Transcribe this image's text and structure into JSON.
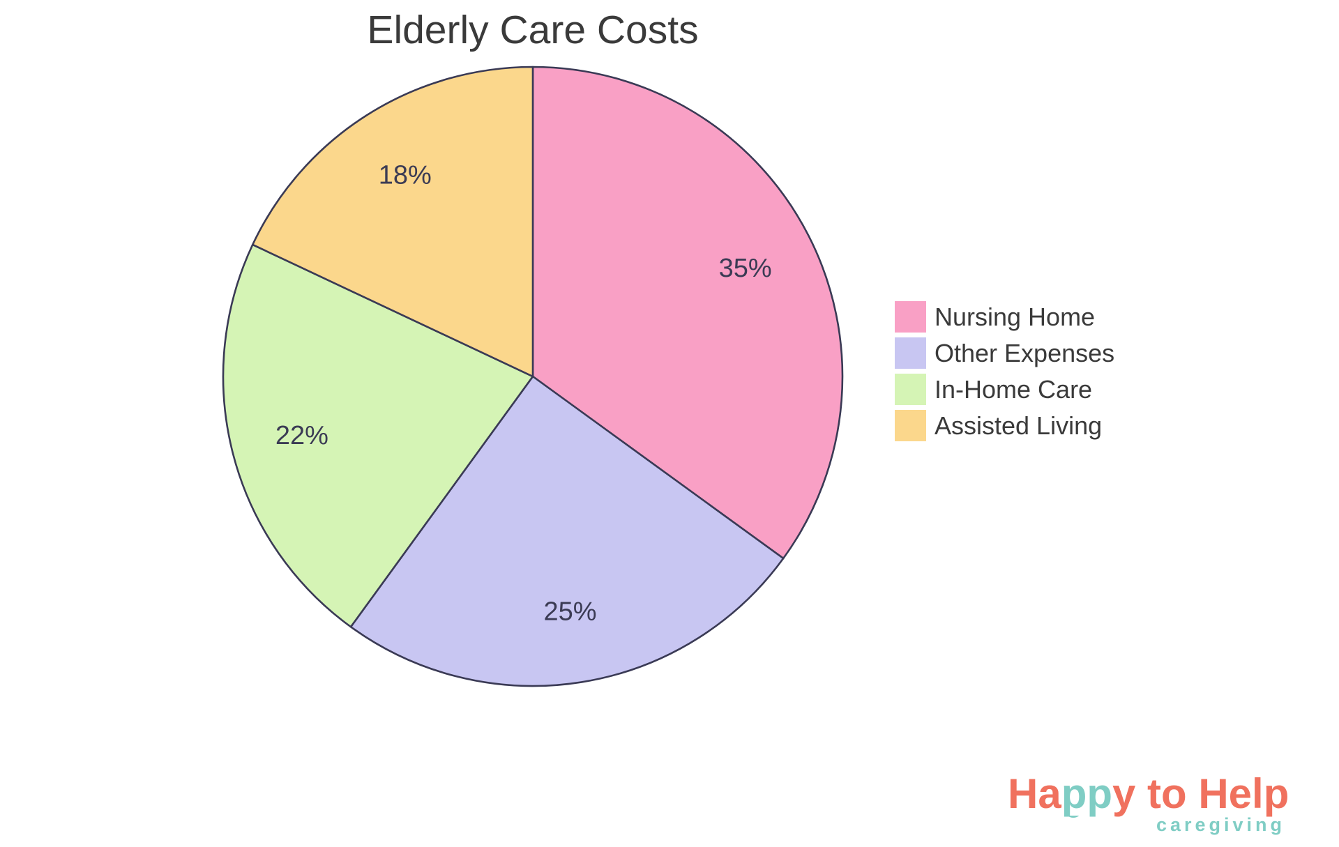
{
  "chart_data": {
    "type": "pie",
    "title": "Elderly Care Costs",
    "slices": [
      {
        "label": "Nursing Home",
        "value": 35,
        "pct_label": "35%",
        "color": "#F9A0C5"
      },
      {
        "label": "Other Expenses",
        "value": 25,
        "pct_label": "25%",
        "color": "#C8C6F2"
      },
      {
        "label": "In-Home Care",
        "value": 22,
        "pct_label": "22%",
        "color": "#D5F4B5"
      },
      {
        "label": "Assisted Living",
        "value": 18,
        "pct_label": "18%",
        "color": "#FBD78C"
      }
    ],
    "start_angle": "12-oclock",
    "direction": "clockwise",
    "legend_position": "right",
    "outline_color": "#3A3A55",
    "pct_label_color": "#3B3B54",
    "title_color": "#3A3A3A",
    "legend_text_color": "#3A3A3A",
    "label_distance": 0.77
  },
  "logo": {
    "word_part1": "Ha",
    "word_part2": "pp",
    "word_part3": "y to Help",
    "tagline": "caregiving",
    "coral": "#F0715E",
    "teal": "#7FCDC4"
  }
}
